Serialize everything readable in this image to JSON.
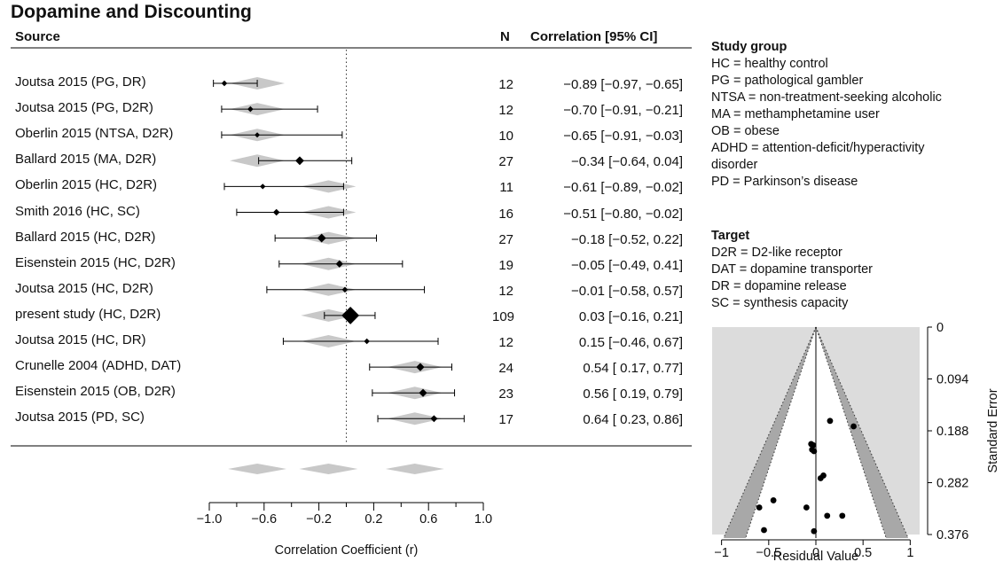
{
  "title": "Dopamine and Discounting",
  "headers": {
    "source": "Source",
    "n": "N",
    "ci": "Correlation [95% CI]"
  },
  "chart_data": [
    {
      "type": "forest",
      "xlabel": "Correlation Coefficient (r)",
      "xlim": [
        -1.0,
        1.0
      ],
      "xticks": [
        "−1.0",
        "−0.6",
        "−0.2",
        "0.2",
        "0.6",
        "1.0"
      ],
      "studies": [
        {
          "source": "Joutsa 2015 (PG, DR)",
          "n": "12",
          "ci_text": "−0.89 [−0.97, −0.65]",
          "r": -0.89,
          "lo": -0.97,
          "hi": -0.65,
          "pred": -0.65
        },
        {
          "source": "Joutsa 2015 (PG, D2R)",
          "n": "12",
          "ci_text": "−0.70 [−0.91, −0.21]",
          "r": -0.7,
          "lo": -0.91,
          "hi": -0.21,
          "pred": -0.65
        },
        {
          "source": "Oberlin 2015 (NTSA, D2R)",
          "n": "10",
          "ci_text": "−0.65 [−0.91, −0.03]",
          "r": -0.65,
          "lo": -0.91,
          "hi": -0.03,
          "pred": -0.65
        },
        {
          "source": "Ballard 2015 (MA, D2R)",
          "n": "27",
          "ci_text": "−0.34 [−0.64, 0.04]",
          "r": -0.34,
          "lo": -0.64,
          "hi": 0.04,
          "pred": -0.65
        },
        {
          "source": "Oberlin 2015 (HC, D2R)",
          "n": "11",
          "ci_text": "−0.61 [−0.89, −0.02]",
          "r": -0.61,
          "lo": -0.89,
          "hi": -0.02,
          "pred": -0.13
        },
        {
          "source": "Smith 2016 (HC, SC)",
          "n": "16",
          "ci_text": "−0.51 [−0.80, −0.02]",
          "r": -0.51,
          "lo": -0.8,
          "hi": -0.02,
          "pred": -0.13
        },
        {
          "source": "Ballard 2015 (HC, D2R)",
          "n": "27",
          "ci_text": "−0.18 [−0.52, 0.22]",
          "r": -0.18,
          "lo": -0.52,
          "hi": 0.22,
          "pred": -0.13
        },
        {
          "source": "Eisenstein 2015 (HC, D2R)",
          "n": "19",
          "ci_text": "−0.05 [−0.49, 0.41]",
          "r": -0.05,
          "lo": -0.49,
          "hi": 0.41,
          "pred": -0.13
        },
        {
          "source": "Joutsa 2015 (HC, D2R)",
          "n": "12",
          "ci_text": "−0.01 [−0.58, 0.57]",
          "r": -0.01,
          "lo": -0.58,
          "hi": 0.57,
          "pred": -0.13
        },
        {
          "source": "present study (HC, D2R)",
          "n": "109",
          "ci_text": "0.03 [−0.16, 0.21]",
          "r": 0.03,
          "lo": -0.16,
          "hi": 0.21,
          "pred": -0.13
        },
        {
          "source": "Joutsa 2015 (HC, DR)",
          "n": "12",
          "ci_text": "0.15 [−0.46, 0.67]",
          "r": 0.15,
          "lo": -0.46,
          "hi": 0.67,
          "pred": -0.13
        },
        {
          "source": "Crunelle 2004 (ADHD, DAT)",
          "n": "24",
          "ci_text": "0.54 [ 0.17, 0.77]",
          "r": 0.54,
          "lo": 0.17,
          "hi": 0.77,
          "pred": 0.5
        },
        {
          "source": "Eisenstein 2015 (OB, D2R)",
          "n": "23",
          "ci_text": "0.56 [ 0.19, 0.79]",
          "r": 0.56,
          "lo": 0.19,
          "hi": 0.79,
          "pred": 0.5
        },
        {
          "source": "Joutsa 2015 (PD, SC)",
          "n": "17",
          "ci_text": "0.64 [ 0.23, 0.86]",
          "r": 0.64,
          "lo": 0.23,
          "hi": 0.86,
          "pred": 0.5
        }
      ],
      "summary_estimates": [
        -0.65,
        -0.13,
        0.5
      ]
    },
    {
      "type": "scatter",
      "subtype": "funnel",
      "xlabel": "Residual Value",
      "ylabel": "Standard Error",
      "xlim": [
        -1.1,
        1.1
      ],
      "ylim": [
        0.376,
        0
      ],
      "xticks": [
        "−1",
        "−0.5",
        "0",
        "0.5",
        "1"
      ],
      "yticks": [
        "0",
        "0.094",
        "0.188",
        "0.282",
        "0.376"
      ],
      "points": [
        [
          0.15,
          0.17
        ],
        [
          0.4,
          0.18
        ],
        [
          -0.05,
          0.212
        ],
        [
          -0.03,
          0.214
        ],
        [
          -0.04,
          0.222
        ],
        [
          -0.02,
          0.225
        ],
        [
          0.08,
          0.269
        ],
        [
          0.05,
          0.274
        ],
        [
          -0.45,
          0.314
        ],
        [
          -0.6,
          0.327
        ],
        [
          -0.1,
          0.327
        ],
        [
          0.12,
          0.342
        ],
        [
          0.28,
          0.342
        ],
        [
          -0.55,
          0.368
        ],
        [
          -0.02,
          0.37
        ]
      ]
    }
  ],
  "legend": {
    "groups_title": "Study group",
    "groups": [
      "HC = healthy control",
      "PG = pathological gambler",
      "NTSA = non-treatment-seeking alcoholic",
      "MA = methamphetamine user",
      "OB = obese",
      "ADHD = attention-deficit/hyperactivity disorder",
      "PD = Parkinson’s disease"
    ],
    "target_title": "Target",
    "targets": [
      "D2R = D2-like receptor",
      "DAT = dopamine transporter",
      "DR = dopamine release",
      "SC = synthesis capacity"
    ]
  }
}
